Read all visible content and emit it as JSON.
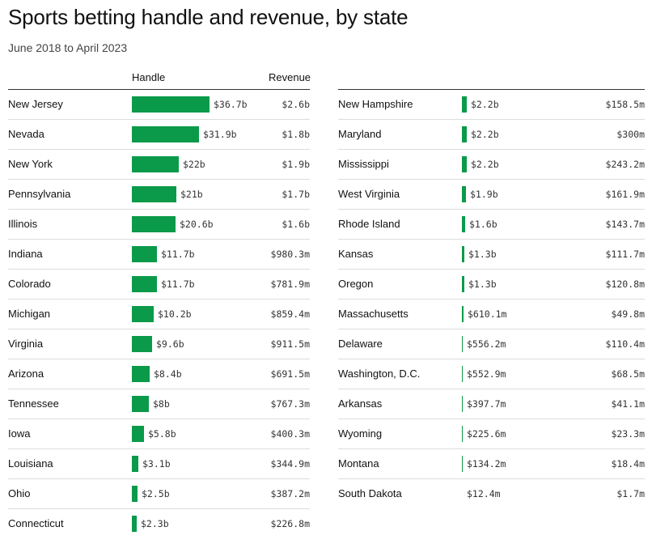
{
  "title": "Sports betting handle and revenue, by state",
  "subtitle": "June 2018 to April 2023",
  "headers": {
    "handle": "Handle",
    "revenue": "Revenue"
  },
  "accent_color": "#0b9a4a",
  "chart_data": {
    "type": "table",
    "title": "Sports betting handle and revenue, by state",
    "subtitle": "June 2018 to April 2023",
    "columns": [
      "",
      "Handle",
      "Revenue"
    ],
    "rows": [
      {
        "state": "New Jersey",
        "handle": 36.7,
        "handle_label": "$36.7b",
        "revenue_label": "$2.6b"
      },
      {
        "state": "Nevada",
        "handle": 31.9,
        "handle_label": "$31.9b",
        "revenue_label": "$1.8b"
      },
      {
        "state": "New York",
        "handle": 22,
        "handle_label": "$22b",
        "revenue_label": "$1.9b"
      },
      {
        "state": "Pennsylvania",
        "handle": 21,
        "handle_label": "$21b",
        "revenue_label": "$1.7b"
      },
      {
        "state": "Illinois",
        "handle": 20.6,
        "handle_label": "$20.6b",
        "revenue_label": "$1.6b"
      },
      {
        "state": "Indiana",
        "handle": 11.7,
        "handle_label": "$11.7b",
        "revenue_label": "$980.3m"
      },
      {
        "state": "Colorado",
        "handle": 11.7,
        "handle_label": "$11.7b",
        "revenue_label": "$781.9m"
      },
      {
        "state": "Michigan",
        "handle": 10.2,
        "handle_label": "$10.2b",
        "revenue_label": "$859.4m"
      },
      {
        "state": "Virginia",
        "handle": 9.6,
        "handle_label": "$9.6b",
        "revenue_label": "$911.5m"
      },
      {
        "state": "Arizona",
        "handle": 8.4,
        "handle_label": "$8.4b",
        "revenue_label": "$691.5m"
      },
      {
        "state": "Tennessee",
        "handle": 8,
        "handle_label": "$8b",
        "revenue_label": "$767.3m"
      },
      {
        "state": "Iowa",
        "handle": 5.8,
        "handle_label": "$5.8b",
        "revenue_label": "$400.3m"
      },
      {
        "state": "Louisiana",
        "handle": 3.1,
        "handle_label": "$3.1b",
        "revenue_label": "$344.9m"
      },
      {
        "state": "Ohio",
        "handle": 2.5,
        "handle_label": "$2.5b",
        "revenue_label": "$387.2m"
      },
      {
        "state": "Connecticut",
        "handle": 2.3,
        "handle_label": "$2.3b",
        "revenue_label": "$226.8m"
      },
      {
        "state": "New Hampshire",
        "handle": 2.2,
        "handle_label": "$2.2b",
        "revenue_label": "$158.5m"
      },
      {
        "state": "Maryland",
        "handle": 2.2,
        "handle_label": "$2.2b",
        "revenue_label": "$300m"
      },
      {
        "state": "Mississippi",
        "handle": 2.2,
        "handle_label": "$2.2b",
        "revenue_label": "$243.2m"
      },
      {
        "state": "West Virginia",
        "handle": 1.9,
        "handle_label": "$1.9b",
        "revenue_label": "$161.9m"
      },
      {
        "state": "Rhode Island",
        "handle": 1.6,
        "handle_label": "$1.6b",
        "revenue_label": "$143.7m"
      },
      {
        "state": "Kansas",
        "handle": 1.3,
        "handle_label": "$1.3b",
        "revenue_label": "$111.7m"
      },
      {
        "state": "Oregon",
        "handle": 1.3,
        "handle_label": "$1.3b",
        "revenue_label": "$120.8m"
      },
      {
        "state": "Massachusetts",
        "handle": 0.6101,
        "handle_label": "$610.1m",
        "revenue_label": "$49.8m"
      },
      {
        "state": "Delaware",
        "handle": 0.5562,
        "handle_label": "$556.2m",
        "revenue_label": "$110.4m"
      },
      {
        "state": "Washington, D.C.",
        "handle": 0.5529,
        "handle_label": "$552.9m",
        "revenue_label": "$68.5m"
      },
      {
        "state": "Arkansas",
        "handle": 0.3977,
        "handle_label": "$397.7m",
        "revenue_label": "$41.1m"
      },
      {
        "state": "Wyoming",
        "handle": 0.2256,
        "handle_label": "$225.6m",
        "revenue_label": "$23.3m"
      },
      {
        "state": "Montana",
        "handle": 0.1342,
        "handle_label": "$134.2m",
        "revenue_label": "$18.4m"
      },
      {
        "state": "South Dakota",
        "handle": 0.0124,
        "handle_label": "$12.4m",
        "revenue_label": "$1.7m"
      }
    ]
  }
}
